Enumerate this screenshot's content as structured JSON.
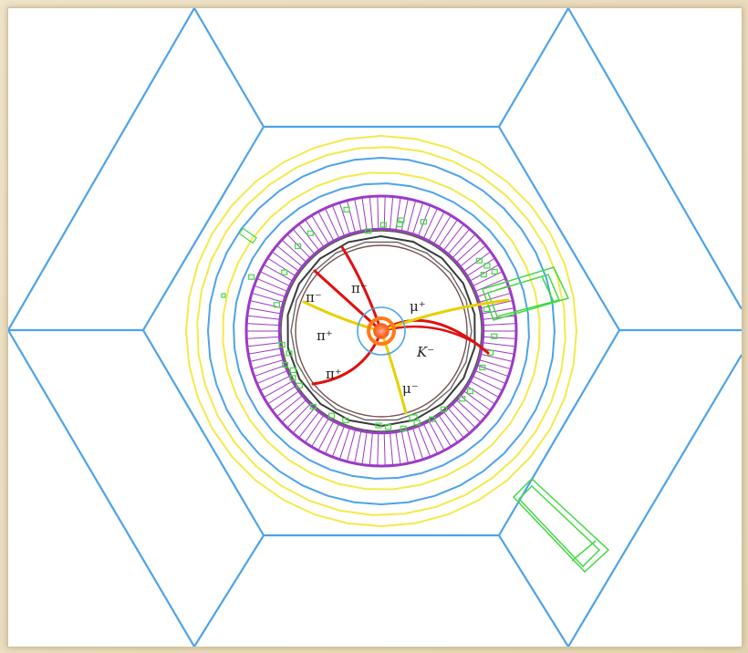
{
  "colors": {
    "background": "#e9dcc0",
    "muon_chambers": "#4da3e8",
    "magnet_coil": "#f3ea4a",
    "calorimeter": "#9b3bc7",
    "tracker": "#555555",
    "pion_tracks": "#e01010",
    "muon_kaon_tracks": "#e8d000",
    "vertex": "#ff7a1a",
    "hits": "#44d844"
  },
  "labels": {
    "pi_minus_a": "π⁻",
    "pi_minus_b": "π⁻",
    "pi_plus_a": "π⁺",
    "pi_plus_b": "π⁺",
    "mu_plus": "μ⁺",
    "k_minus": "K⁻",
    "mu_minus": "μ⁻"
  }
}
